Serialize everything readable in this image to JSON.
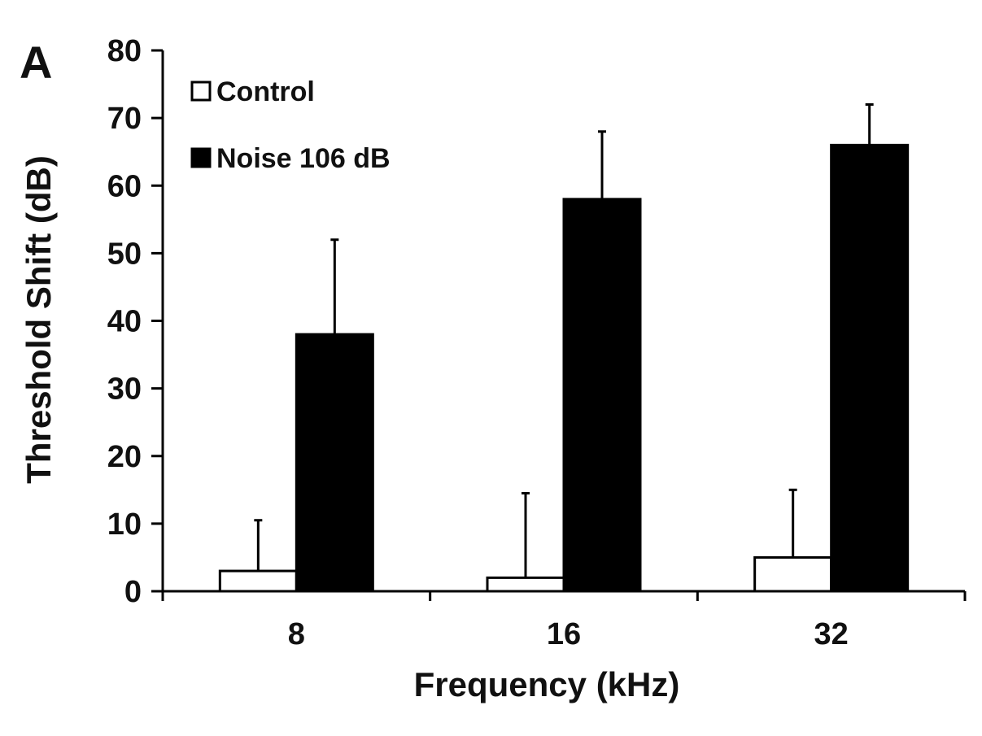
{
  "panel_label": "A",
  "chart_data": {
    "type": "bar",
    "categories": [
      "8",
      "16",
      "32"
    ],
    "xlabel": "Frequency (kHz)",
    "ylabel": "Threshold Shift (dB)",
    "ylim": [
      0,
      80
    ],
    "yticks": [
      "0",
      "10",
      "20",
      "30",
      "40",
      "50",
      "60",
      "70",
      "80"
    ],
    "grid": false,
    "legend_position": "top-left",
    "series": [
      {
        "name": "Control",
        "color": "#ffffff",
        "values": [
          3,
          2,
          5
        ],
        "errors": [
          7.5,
          12.5,
          10
        ]
      },
      {
        "name": "Noise 106 dB",
        "color": "#000000",
        "values": [
          38,
          58,
          66
        ],
        "errors": [
          14,
          10,
          6
        ]
      }
    ]
  }
}
